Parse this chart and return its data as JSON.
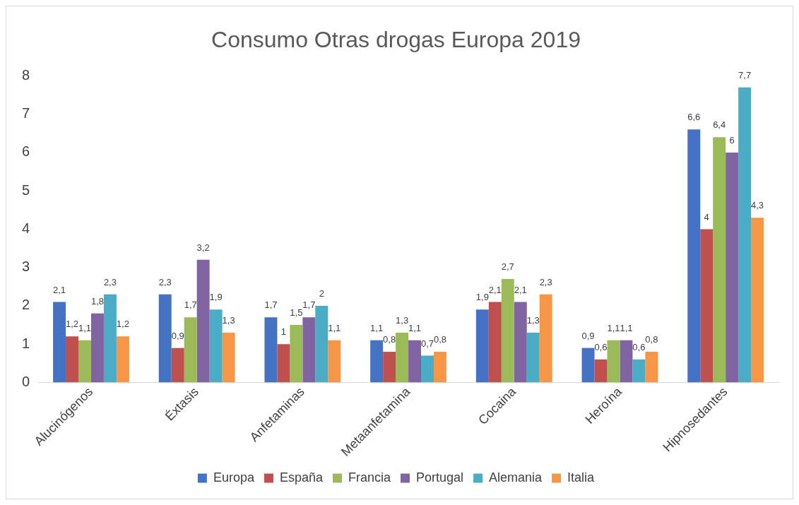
{
  "chart_data": {
    "type": "bar",
    "title": "Consumo Otras drogas Europa 2019",
    "categories": [
      "Alucinógenos",
      "Éxtasis",
      "Anfetaminas",
      "Metaanfetamina",
      "Cocaina",
      "Heroína",
      "Hipnosedantes"
    ],
    "series": [
      {
        "name": "Europa",
        "color": "#4472c4",
        "values": [
          2.1,
          2.3,
          1.7,
          1.1,
          1.9,
          0.9,
          6.6
        ],
        "value_labels": [
          "2,1",
          "2,3",
          "1,7",
          "1,1",
          "1,9",
          "0,9",
          "6,6"
        ]
      },
      {
        "name": "España",
        "color": "#c0504d",
        "values": [
          1.2,
          0.9,
          1,
          0.8,
          2.1,
          0.6,
          4
        ],
        "value_labels": [
          "1,2",
          "0,9",
          "1",
          "0,8",
          "2,1",
          "0,6",
          "4"
        ]
      },
      {
        "name": "Francia",
        "color": "#9bbb59",
        "values": [
          1.1,
          1.7,
          1.5,
          1.3,
          2.7,
          1.1,
          6.4
        ],
        "value_labels": [
          "1,1",
          "1,7",
          "1,5",
          "1,3",
          "2,7",
          "1,1",
          "6,4"
        ]
      },
      {
        "name": "Portugal",
        "color": "#8064a2",
        "values": [
          1.8,
          3.2,
          1.7,
          1.1,
          2.1,
          1.1,
          6
        ],
        "value_labels": [
          "1,8",
          "3,2",
          "1,7",
          "1,1",
          "2,1",
          "1,1",
          "6"
        ]
      },
      {
        "name": "Alemania",
        "color": "#4bacc6",
        "values": [
          2.3,
          1.9,
          2,
          0.7,
          1.3,
          0.6,
          7.7
        ],
        "value_labels": [
          "2,3",
          "1,9",
          "2",
          "0,7",
          "1,3",
          "0,6",
          "7,7"
        ]
      },
      {
        "name": "Italia",
        "color": "#f79646",
        "values": [
          1.2,
          1.3,
          1.1,
          0.8,
          2.3,
          0.8,
          4.3
        ],
        "value_labels": [
          "1,2",
          "1,3",
          "1,1",
          "0,8",
          "2,3",
          "0,8",
          "4,3"
        ]
      }
    ],
    "ylim": [
      0,
      8
    ],
    "yticks": [
      0,
      1,
      2,
      3,
      4,
      5,
      6,
      7,
      8
    ],
    "grid": false,
    "legend": "bottom"
  }
}
